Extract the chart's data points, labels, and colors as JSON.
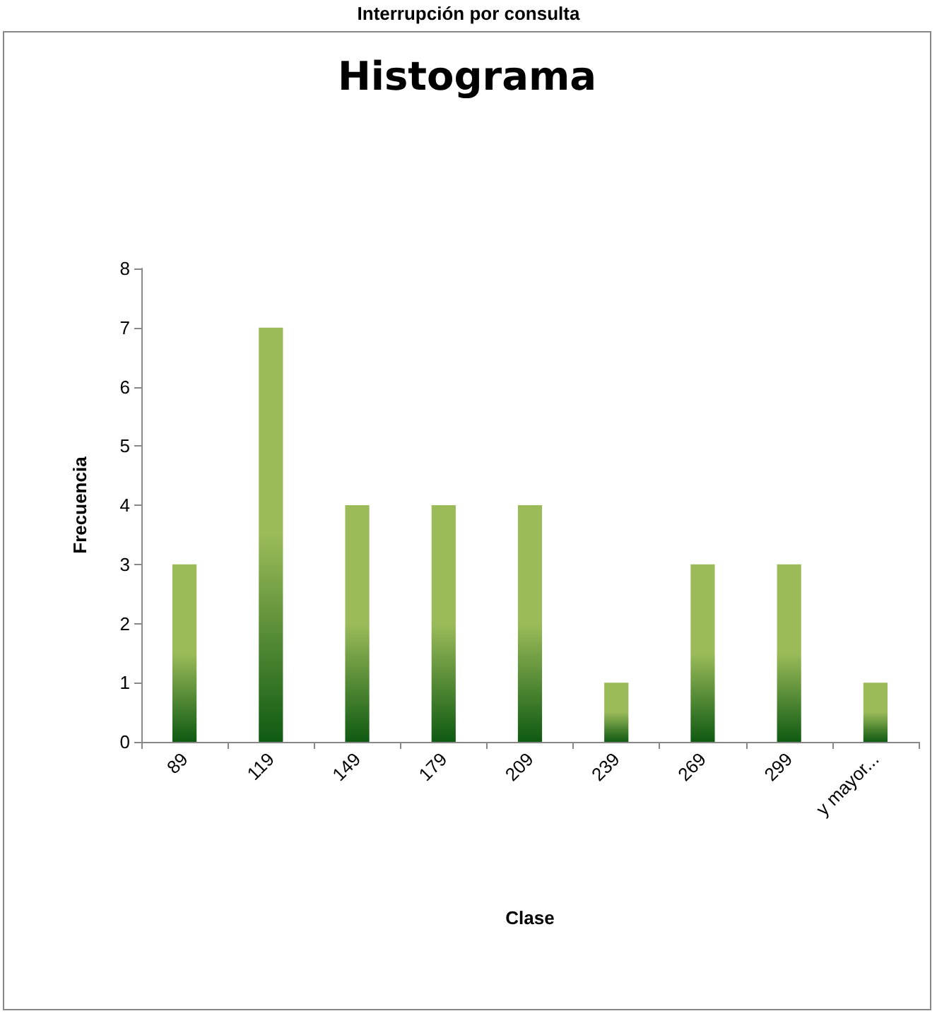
{
  "chart_data": {
    "type": "bar",
    "title": "Interrupción por consulta",
    "subtitle": "Histograma",
    "xlabel": "Clase",
    "ylabel": "Frecuencia",
    "categories": [
      "89",
      "119",
      "149",
      "179",
      "209",
      "239",
      "269",
      "299",
      "y mayor..."
    ],
    "values": [
      3,
      7,
      4,
      4,
      4,
      1,
      3,
      3,
      1
    ],
    "color": "#9bbb59",
    "ylim": [
      0,
      8
    ],
    "yticks": [
      0,
      1,
      2,
      3,
      4,
      5,
      6,
      7,
      8
    ],
    "grid": false
  }
}
